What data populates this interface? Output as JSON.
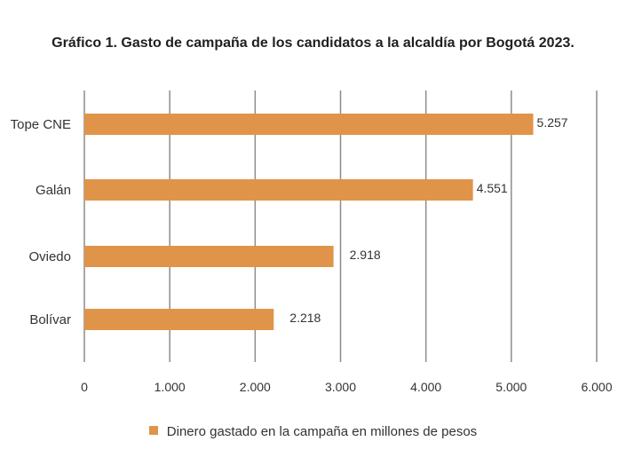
{
  "chart_data": {
    "type": "bar",
    "orientation": "horizontal",
    "title": "Gráfico 1. Gasto de campaña de los candidatos a la alcaldía por Bogotá 2023.",
    "categories": [
      "Tope CNE",
      "Galán",
      "Oviedo",
      "Bolívar"
    ],
    "values": [
      5257,
      4551,
      2918,
      2218
    ],
    "data_labels": [
      "5.257",
      "4.551",
      "2.918",
      "2.218"
    ],
    "series": [
      {
        "name": "Dinero gastado en la campaña en millones de pesos",
        "values": [
          5257,
          4551,
          2918,
          2218
        ]
      }
    ],
    "xlim": [
      0,
      6000
    ],
    "x_ticks": [
      0,
      1000,
      2000,
      3000,
      4000,
      5000,
      6000
    ],
    "x_tick_labels": [
      "0",
      "1.000",
      "2.000",
      "3.000",
      "4.000",
      "5.000",
      "6.000"
    ],
    "grid": true,
    "legend_position": "bottom",
    "bar_color": "#e0944a",
    "grid_color": "#8c8c8c"
  }
}
